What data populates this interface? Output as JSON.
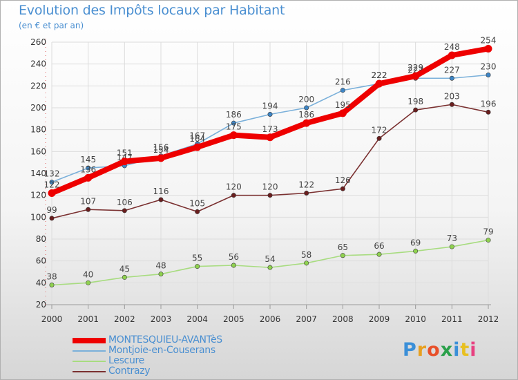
{
  "title": "Evolution des Impôts locaux par Habitant",
  "subtitle": "(en € et par an)",
  "brand": {
    "text": "Proxiti",
    "letter_colors": [
      "#3a8fd8",
      "#e8a020",
      "#e8502a",
      "#2aa04a",
      "#3a8fd8",
      "#e8c020",
      "#e84080"
    ]
  },
  "chart_data": {
    "type": "line",
    "x": [
      2000,
      2001,
      2002,
      2003,
      2004,
      2005,
      2006,
      2007,
      2008,
      2009,
      2010,
      2011,
      2012
    ],
    "ylim": [
      20,
      260
    ],
    "yticks": [
      20,
      40,
      60,
      80,
      100,
      120,
      140,
      160,
      180,
      200,
      220,
      240,
      260
    ],
    "grid": true,
    "legend_position": "bottom-left",
    "series": [
      {
        "name": "MONTESQUIEU-AVANTèS",
        "color": "#ee0000",
        "marker_color": "#ee0000",
        "values": [
          122,
          136,
          151,
          154,
          164,
          175,
          173,
          186,
          195,
          222,
          229,
          248,
          254
        ]
      },
      {
        "name": "Montjoie-en-Couserans",
        "color": "#7ab0da",
        "marker_color": "#3d85c6",
        "values": [
          132,
          145,
          147,
          156,
          167,
          186,
          194,
          200,
          216,
          222,
          227,
          227,
          230
        ]
      },
      {
        "name": "Lescure",
        "color": "#a8dc80",
        "marker_color": "#8fd14f",
        "values": [
          38,
          40,
          45,
          48,
          55,
          56,
          54,
          58,
          65,
          66,
          69,
          73,
          79
        ]
      },
      {
        "name": "Contrazy",
        "color": "#7a3030",
        "marker_color": "#6a1e1e",
        "values": [
          99,
          107,
          106,
          116,
          105,
          120,
          120,
          122,
          126,
          172,
          198,
          203,
          196
        ]
      }
    ],
    "draw_order": [
      3,
      2,
      1,
      0
    ]
  }
}
